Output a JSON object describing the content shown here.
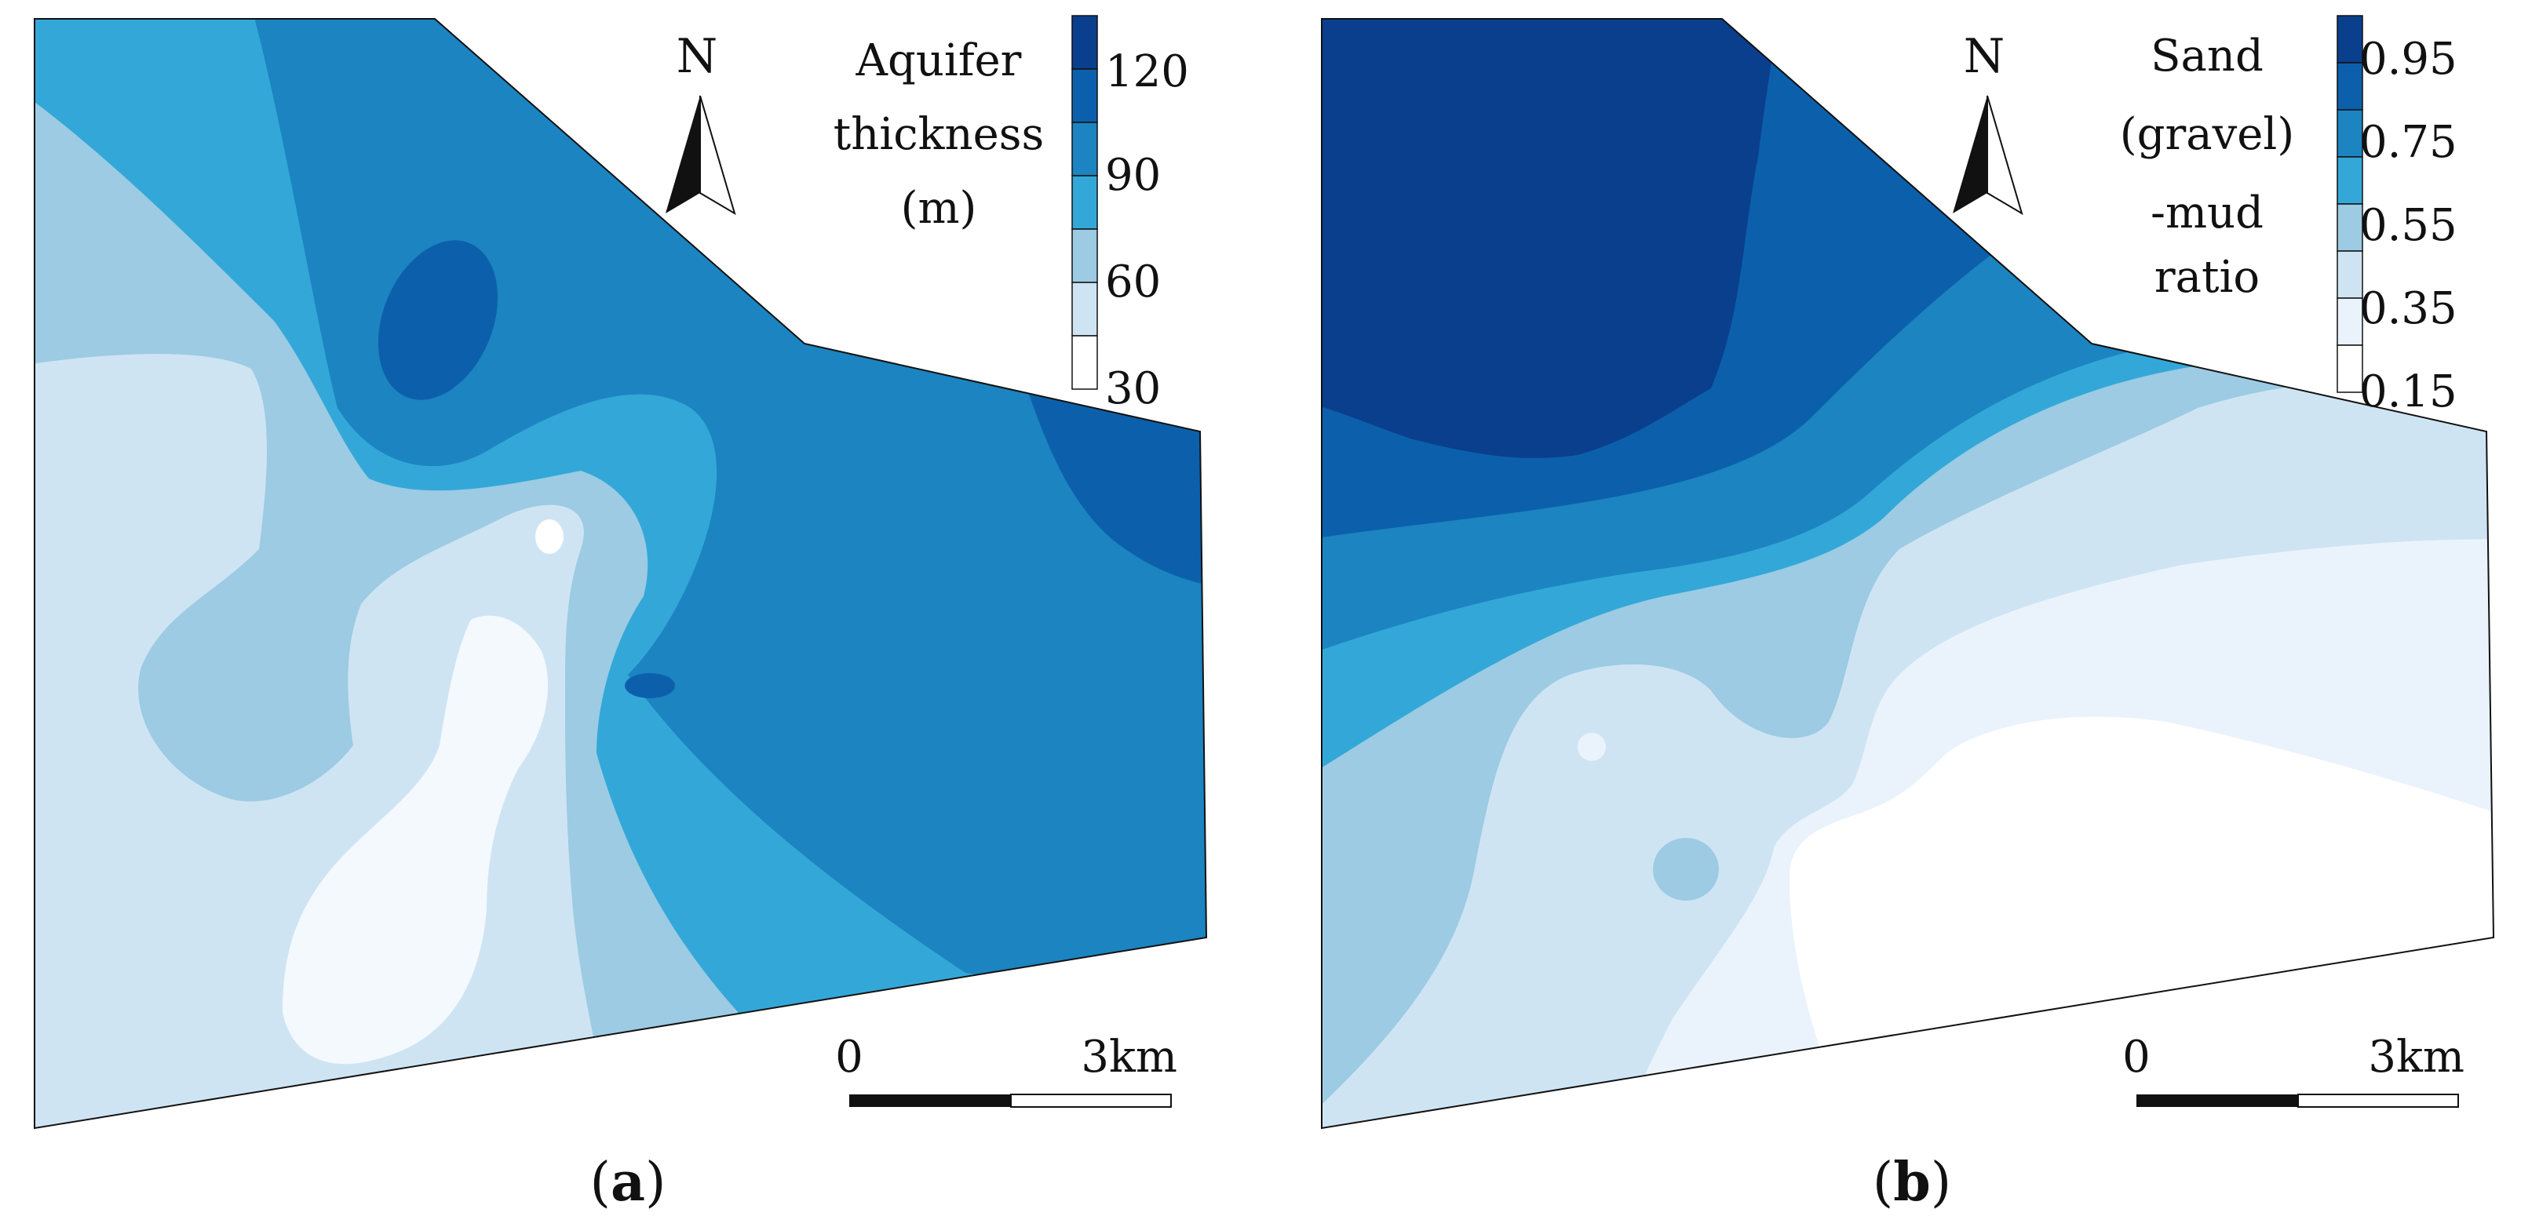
{
  "figure": {
    "panels": [
      {
        "id": "a",
        "label_open": "(",
        "label_letter": "a",
        "label_close": ")",
        "legend": {
          "title_lines": [
            "Aquifer",
            "thickness",
            "(m)"
          ],
          "ticks": [
            "120",
            "90",
            "60",
            "30"
          ],
          "colors": [
            "#0a3f8e",
            "#0c60ab",
            "#1b84c1",
            "#33a8d8",
            "#9ccbe3",
            "#cfe4f3",
            "#ffffff"
          ]
        },
        "north_label": "N",
        "scale_bar": {
          "start": "0",
          "end": "3km"
        }
      },
      {
        "id": "b",
        "label_open": "(",
        "label_letter": "b",
        "label_close": ")",
        "legend": {
          "title_lines": [
            "Sand",
            "(gravel)",
            "-mud",
            "ratio"
          ],
          "ticks": [
            "0.95",
            "0.75",
            "0.55",
            "0.35",
            "0.15"
          ],
          "colors": [
            "#0a3f8e",
            "#0c60ab",
            "#1b84c1",
            "#33a8d8",
            "#9ccbe3",
            "#cfe4f3",
            "#eaf3fb",
            "#ffffff"
          ]
        },
        "north_label": "N",
        "scale_bar": {
          "start": "0",
          "end": "3km"
        }
      }
    ]
  }
}
